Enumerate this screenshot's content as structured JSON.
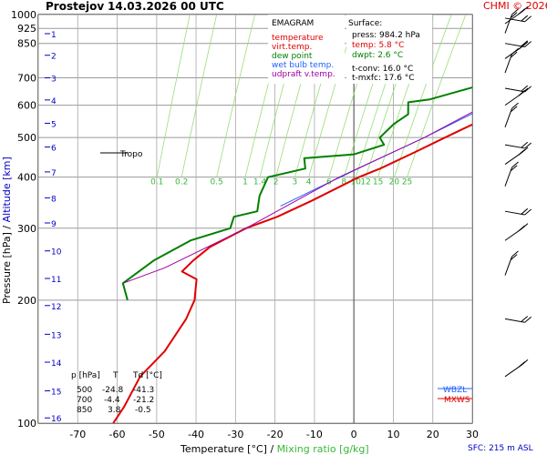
{
  "header": {
    "station": "Prostejov",
    "datetime": "14.03.2026 00 UTC",
    "credit": "CHMI © 2026"
  },
  "legend": {
    "title": "EMAGRAM",
    "items": [
      {
        "label": "temperature",
        "color": "#e00000"
      },
      {
        "label": "virt.temp.",
        "color": "#e00000"
      },
      {
        "label": "dew point",
        "color": "#008000"
      },
      {
        "label": "wet bulb temp.",
        "color": "#2060ff"
      },
      {
        "label": "udpraft v.temp.",
        "color": "#a000a0"
      }
    ]
  },
  "surface": {
    "title": "Surface:",
    "press": "press: 984.2 hPa",
    "temp": "temp: 5.8 °C",
    "dwpt": "dwpt: 2.6 °C",
    "tconv": "t-conv: 16.0 °C",
    "tmxfc": "t-mxfc: 17.6 °C"
  },
  "table": {
    "headers": [
      "p [hPa]",
      "T",
      "Td [°C]"
    ],
    "rows": [
      [
        "500",
        "-24.8",
        "-41.3"
      ],
      [
        "700",
        "-4.4",
        "-21.2"
      ],
      [
        "850",
        "3.8",
        "-0.5"
      ]
    ]
  },
  "annotations": {
    "tropo": "Tropo",
    "wbzl": "WBZL",
    "mxws": "MXWS",
    "sfc": "SFC: 215 m ASL"
  },
  "axes": {
    "xlabel_temp": "Temperature [°C]",
    "xlabel_sep": " / ",
    "xlabel_mix": "Mixing ratio [g/kg]",
    "ylabel_pressure": "Pressure [hPa]",
    "ylabel_sep": " / ",
    "ylabel_alt": "Altitude [km]"
  },
  "chart_data": {
    "type": "line",
    "xlim": [
      -80,
      30
    ],
    "ylim": [
      1000,
      100
    ],
    "x_log": false,
    "y_log": true,
    "x_ticks": [
      -70,
      -60,
      -50,
      -40,
      -30,
      -20,
      -10,
      0,
      10,
      20,
      30
    ],
    "y_ticks": [
      100,
      200,
      300,
      400,
      500,
      600,
      700,
      850,
      925,
      1000
    ],
    "altitude_km_ticks": [
      {
        "km": 1,
        "p": 898
      },
      {
        "km": 2,
        "p": 795
      },
      {
        "km": 3,
        "p": 700
      },
      {
        "km": 4,
        "p": 618
      },
      {
        "km": 5,
        "p": 542
      },
      {
        "km": 6,
        "p": 474
      },
      {
        "km": 7,
        "p": 412
      },
      {
        "km": 8,
        "p": 356
      },
      {
        "km": 9,
        "p": 309
      },
      {
        "km": 10,
        "p": 264
      },
      {
        "km": 11,
        "p": 226
      },
      {
        "km": 12,
        "p": 194
      },
      {
        "km": 13,
        "p": 165
      },
      {
        "km": 14,
        "p": 141
      },
      {
        "km": 15,
        "p": 120
      },
      {
        "km": 16,
        "p": 103
      }
    ],
    "mixing_ratio_labels": [
      "0.1",
      "0.2",
      "0.5",
      "1",
      "1.4",
      "2",
      "3",
      "4",
      "6",
      "8",
      "10",
      "12",
      "15",
      "20",
      "25"
    ],
    "mixing_ratio_values": [
      0.1,
      0.2,
      0.5,
      1,
      1.4,
      2,
      3,
      4,
      6,
      8,
      10,
      12,
      15,
      20,
      25
    ],
    "series": [
      {
        "name": "temperature",
        "color": "#e00000",
        "points": [
          [
            10.5,
            1000
          ],
          [
            7.5,
            970
          ],
          [
            4.5,
            925
          ],
          [
            3.8,
            850
          ],
          [
            -4.4,
            700
          ],
          [
            -13,
            600
          ],
          [
            -24.8,
            500
          ],
          [
            -30,
            460
          ],
          [
            -36,
            420
          ],
          [
            -40,
            400
          ],
          [
            -48,
            350
          ],
          [
            -54,
            320
          ],
          [
            -60,
            300
          ],
          [
            -66,
            270
          ],
          [
            -68,
            250
          ],
          [
            -69,
            235
          ],
          [
            -64,
            225
          ],
          [
            -61,
            200
          ],
          [
            -60,
            180
          ],
          [
            -60,
            150
          ],
          [
            -62,
            130
          ],
          [
            -61,
            110
          ],
          [
            -61,
            100
          ]
        ]
      },
      {
        "name": "virt.temp.",
        "color": "#e00000",
        "points": [
          [
            11,
            1000
          ],
          [
            8,
            970
          ],
          [
            5,
            925
          ],
          [
            4.2,
            850
          ],
          [
            -4.2,
            700
          ],
          [
            -12.9,
            600
          ],
          [
            -24.7,
            500
          ]
        ]
      },
      {
        "name": "dew point",
        "color": "#008000",
        "points": [
          [
            1,
            990
          ],
          [
            1.5,
            980
          ],
          [
            1.5,
            950
          ],
          [
            0,
            925
          ],
          [
            -0.5,
            870
          ],
          [
            -0.5,
            850
          ],
          [
            -10,
            800
          ],
          [
            -20,
            750
          ],
          [
            -21.2,
            700
          ],
          [
            -23,
            680
          ],
          [
            -35,
            620
          ],
          [
            -40,
            610
          ],
          [
            -38,
            570
          ],
          [
            -40,
            540
          ],
          [
            -41.3,
            500
          ],
          [
            -39,
            480
          ],
          [
            -45,
            455
          ],
          [
            -57,
            445
          ],
          [
            -55,
            420
          ],
          [
            -63,
            400
          ],
          [
            -62,
            360
          ],
          [
            -60,
            330
          ],
          [
            -65,
            320
          ],
          [
            -64,
            300
          ],
          [
            -72,
            280
          ],
          [
            -78,
            250
          ],
          [
            -82,
            220
          ],
          [
            -78,
            200
          ]
        ]
      },
      {
        "name": "wet bulb temp.",
        "color": "#2060ff",
        "points": [
          [
            6.5,
            1000
          ],
          [
            5,
            970
          ],
          [
            3,
            925
          ],
          [
            2,
            850
          ],
          [
            -8,
            700
          ],
          [
            -19,
            600
          ],
          [
            -30,
            500
          ],
          [
            -40,
            430
          ],
          [
            -48,
            380
          ],
          [
            -55,
            340
          ]
        ]
      },
      {
        "name": "udpraft v.temp.",
        "color": "#a000a0",
        "points": [
          [
            -20,
            600
          ],
          [
            -30,
            500
          ],
          [
            -45,
            400
          ],
          [
            -60,
            300
          ],
          [
            -74,
            240
          ],
          [
            -82,
            220
          ]
        ]
      }
    ],
    "tropopause_hpa": 225,
    "grid": true
  }
}
